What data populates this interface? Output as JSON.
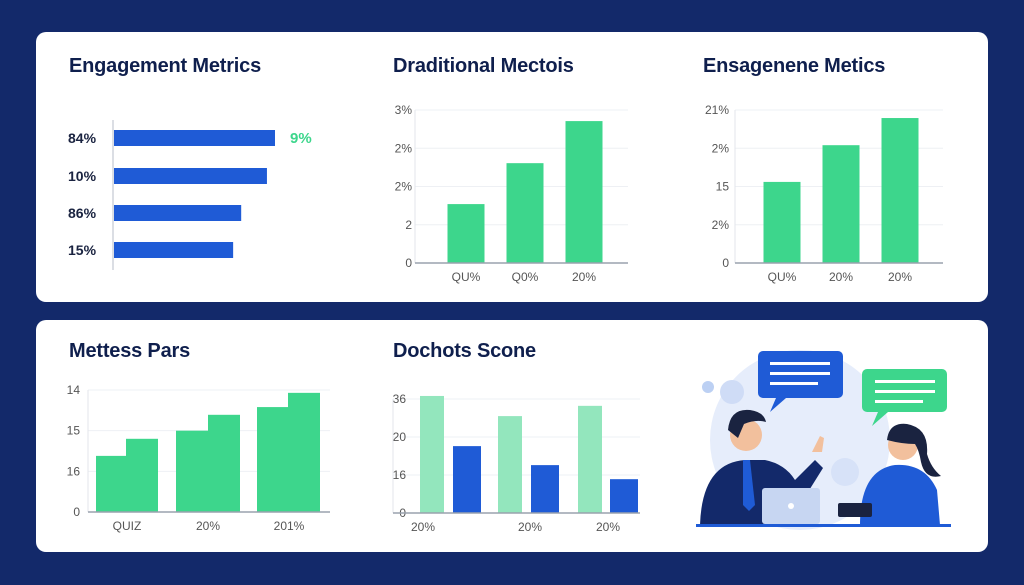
{
  "colors": {
    "background": "#13296a",
    "card": "#ffffff",
    "blue": "#1f5bd6",
    "green": "#3dd68c",
    "light_green": "#93e6bd",
    "title": "#0f1f4d"
  },
  "chart_data": [
    {
      "type": "bar",
      "orientation": "horizontal",
      "title": "Engagement Metrics",
      "categories": [
        "84%",
        "10%",
        "86%",
        "15%"
      ],
      "values": [
        1.0,
        0.95,
        0.79,
        0.74
      ],
      "annotation": "9%",
      "grid": false
    },
    {
      "type": "bar",
      "title": "Draditional Mectois",
      "categories": [
        "QU%",
        "Q0%",
        "20%"
      ],
      "y_tick_labels": [
        "0",
        "2",
        "2%",
        "2%",
        "3%"
      ],
      "values": [
        1.54,
        2.61,
        3.71
      ],
      "ylim": [
        0,
        4
      ],
      "grid": true
    },
    {
      "type": "bar",
      "title": "Ensagenene Metics",
      "categories": [
        "QU%",
        "20%",
        "20%"
      ],
      "y_tick_labels": [
        "0",
        "2%",
        "15",
        "2%",
        "21%"
      ],
      "values": [
        2.12,
        3.08,
        3.79
      ],
      "ylim": [
        0,
        4
      ],
      "grid": true
    },
    {
      "type": "bar",
      "title": "Mettess Pars",
      "categories": [
        "QUIZ",
        "20%",
        "201%"
      ],
      "y_tick_labels": [
        "0",
        "16",
        "15",
        "14"
      ],
      "series": [
        {
          "values": [
            1.38,
            2.0,
            2.58
          ]
        },
        {
          "values": [
            1.8,
            2.39,
            2.93
          ]
        }
      ],
      "ylim": [
        0,
        3
      ],
      "grid": true
    },
    {
      "type": "bar",
      "title": "Dochots Scone",
      "categories": [
        "20%",
        "20%",
        "20%"
      ],
      "y_tick_labels": [
        "0",
        "16",
        "20",
        "36"
      ],
      "series": [
        {
          "values": [
            3.08,
            2.55,
            2.82
          ]
        },
        {
          "values": [
            1.76,
            1.26,
            0.89
          ]
        }
      ],
      "ylim": [
        0,
        3
      ],
      "grid": true
    }
  ],
  "illustration": {
    "icons": [
      "speech-bubble-icon",
      "speech-bubble-icon",
      "laptop-icon"
    ]
  }
}
